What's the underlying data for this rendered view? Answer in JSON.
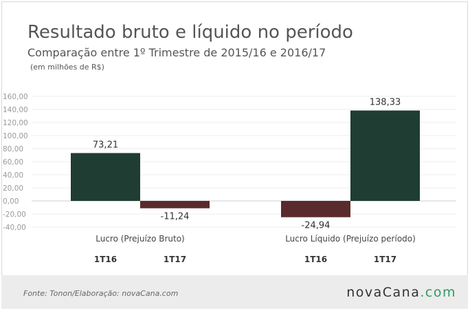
{
  "header": {
    "title": "Resultado bruto e líquido no período",
    "subtitle": "Comparação entre 1º Trimestre de 2015/16 e 2016/17",
    "unit": "(em milhões de R$)"
  },
  "footer": {
    "source": "Fonte: Tonon/Elaboração: novaCana.com",
    "logo_part1": "novaCana",
    "logo_part2": ".com"
  },
  "colors": {
    "positive": "#1f3d33",
    "negative": "#5a2b2c",
    "logo_accent": "#2e9b68"
  },
  "chart_data": {
    "type": "bar",
    "title": "Resultado bruto e líquido no período",
    "subtitle": "Comparação entre 1º Trimestre de 2015/16 e 2016/17",
    "ylabel": "(em milhões de R$)",
    "ylim": [
      -40,
      160
    ],
    "yticks": [
      "-40,00",
      "-20,00",
      "0,00",
      "20,00",
      "40,00",
      "60,00",
      "80,00",
      "100,00",
      "120,00",
      "140,00",
      "160,00"
    ],
    "grid": true,
    "groups": [
      {
        "label": "Lucro (Prejuízo Bruto)",
        "bars": [
          {
            "period": "1T16",
            "value": 73.21,
            "value_label": "73,21"
          },
          {
            "period": "1T17",
            "value": -11.24,
            "value_label": "-11,24"
          }
        ]
      },
      {
        "label": "Lucro Líquido (Prejuízo período)",
        "bars": [
          {
            "period": "1T16",
            "value": -24.94,
            "value_label": "-24,94"
          },
          {
            "period": "1T17",
            "value": 138.33,
            "value_label": "138,33"
          }
        ]
      }
    ]
  }
}
